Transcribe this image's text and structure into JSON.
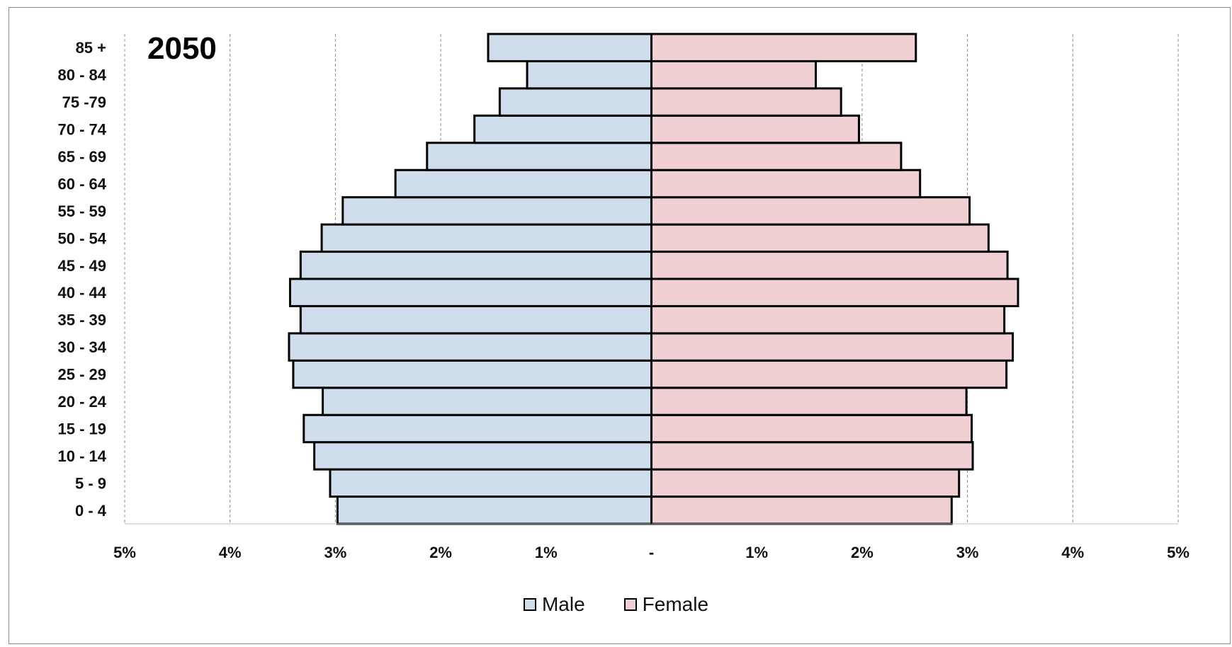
{
  "colors": {
    "male": "#d0dded",
    "female": "#f0d0d3",
    "outline": "#000000",
    "grid": "#8c8c8c"
  },
  "chart_data": {
    "type": "bar",
    "orientation": "horizontal",
    "title": "2050",
    "categories": [
      "0 - 4",
      "5 - 9",
      "10 - 14",
      "15 - 19",
      "20 - 24",
      "25 - 29",
      "30 - 34",
      "35 - 39",
      "40 - 44",
      "45 - 49",
      "50 - 54",
      "55 - 59",
      "60 - 64",
      "65 - 69",
      "70 - 74",
      "75 -79",
      "80 - 84",
      "85 +"
    ],
    "series": [
      {
        "name": "Male",
        "values": [
          2.98,
          3.05,
          3.2,
          3.3,
          3.12,
          3.4,
          3.44,
          3.33,
          3.43,
          3.33,
          3.13,
          2.93,
          2.43,
          2.13,
          1.68,
          1.44,
          1.18,
          1.55
        ]
      },
      {
        "name": "Female",
        "values": [
          2.85,
          2.92,
          3.05,
          3.04,
          2.99,
          3.37,
          3.43,
          3.35,
          3.48,
          3.38,
          3.2,
          3.02,
          2.55,
          2.37,
          1.97,
          1.8,
          1.56,
          2.51
        ]
      }
    ],
    "xlim": [
      -5,
      5
    ],
    "x_ticks": [
      "5%",
      "4%",
      "3%",
      "2%",
      "1%",
      "-",
      "1%",
      "2%",
      "3%",
      "4%",
      "5%"
    ],
    "grid": "vertical-dashed",
    "legend_position": "bottom-center"
  },
  "legend": {
    "male_label": "Male",
    "female_label": "Female"
  }
}
